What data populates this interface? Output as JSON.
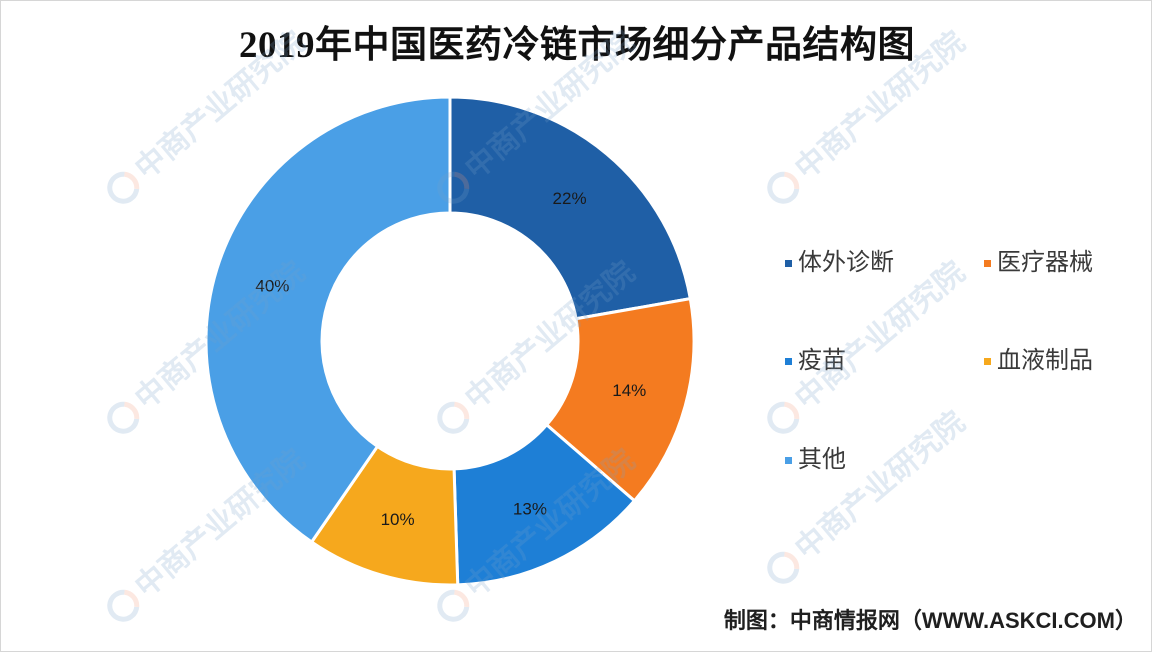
{
  "source": "制图：中商情报网（WWW.ASKCI.COM）",
  "watermark": "中商产业研究院",
  "chart_data": {
    "type": "pie",
    "donut": true,
    "title": "2019年中国医药冷链市场细分产品结构图",
    "categories": [
      "体外诊断",
      "医疗器械",
      "疫苗",
      "血液制品",
      "其他"
    ],
    "values": [
      22,
      14,
      13,
      10,
      40
    ],
    "data_labels": [
      "22%",
      "14%",
      "13%",
      "10%",
      "40%"
    ],
    "colors": [
      "#1f5fa6",
      "#f47b20",
      "#1e7fd6",
      "#f6a81d",
      "#4a9fe6"
    ],
    "legend": {
      "position": "right"
    }
  }
}
